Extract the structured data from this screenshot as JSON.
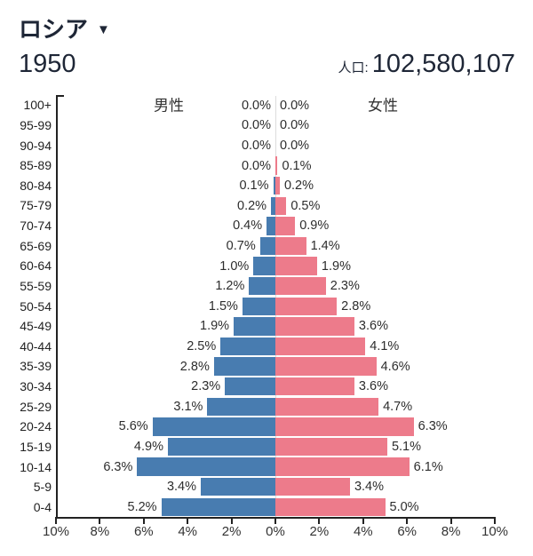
{
  "header": {
    "country": "ロシア",
    "dropdown_icon": "▼",
    "year": "1950",
    "population_label": "人口:",
    "population_value": "102,580,107"
  },
  "chart": {
    "male_label": "男性",
    "female_label": "女性"
  },
  "chart_data": {
    "type": "bar",
    "subtype": "population_pyramid",
    "title": "ロシア 1950",
    "population_total": "102,580,107",
    "unit": "% of total population",
    "value_label_format": "x.x%",
    "age_groups_top_to_bottom": [
      "100+",
      "95-99",
      "90-94",
      "85-89",
      "80-84",
      "75-79",
      "70-74",
      "65-69",
      "60-64",
      "55-59",
      "50-54",
      "45-49",
      "40-44",
      "35-39",
      "30-34",
      "25-29",
      "20-24",
      "15-19",
      "10-14",
      "5-9",
      "0-4"
    ],
    "series": [
      {
        "name": "男性",
        "side": "left",
        "color": "#487CB0",
        "values": [
          0.0,
          0.0,
          0.0,
          0.0,
          0.1,
          0.2,
          0.4,
          0.7,
          1.0,
          1.2,
          1.5,
          1.9,
          2.5,
          2.8,
          2.3,
          3.1,
          5.6,
          4.9,
          6.3,
          3.4,
          5.2
        ]
      },
      {
        "name": "女性",
        "side": "right",
        "color": "#ED7B8B",
        "values": [
          0.0,
          0.0,
          0.0,
          0.1,
          0.2,
          0.5,
          0.9,
          1.4,
          1.9,
          2.3,
          2.8,
          3.6,
          4.1,
          4.6,
          3.6,
          4.7,
          6.3,
          5.1,
          6.1,
          3.4,
          5.0
        ]
      }
    ],
    "x_axis": {
      "tick_labels": [
        "10%",
        "8%",
        "6%",
        "4%",
        "2%",
        "0%",
        "2%",
        "4%",
        "6%",
        "8%",
        "10%"
      ],
      "max_percent_each_side": 10,
      "tick_step_percent": 2
    },
    "axis_color": "#222222",
    "center_gridline_color": "#dddddd"
  }
}
